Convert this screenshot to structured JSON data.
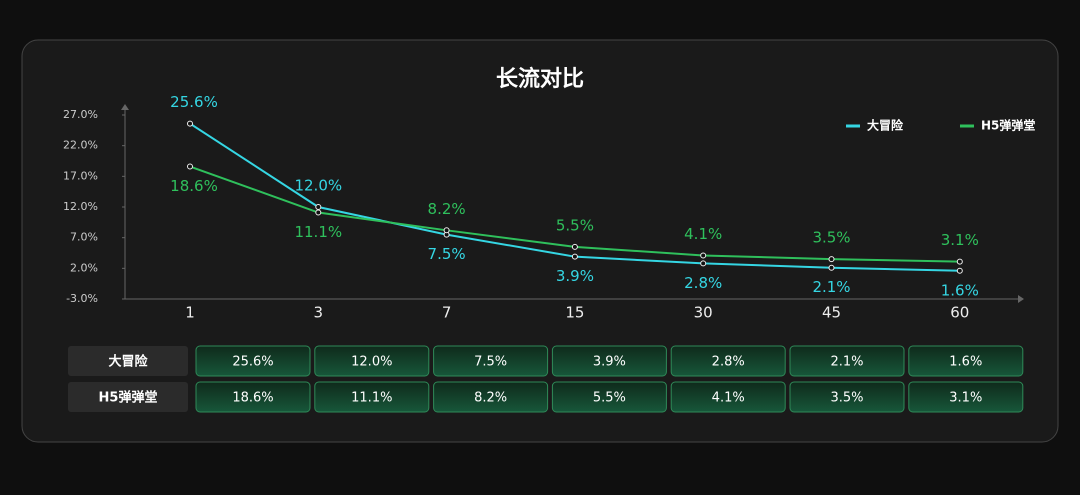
{
  "chart_data": {
    "type": "line",
    "title": "长流对比",
    "categories": [
      "1",
      "3",
      "7",
      "15",
      "30",
      "45",
      "60"
    ],
    "series": [
      {
        "name": "大冒险",
        "color": "#35d6e3",
        "values": [
          25.6,
          12.0,
          7.5,
          3.9,
          2.8,
          2.1,
          1.6
        ],
        "value_labels": [
          "25.6%",
          "12.0%",
          "7.5%",
          "3.9%",
          "2.8%",
          "2.1%",
          "1.6%"
        ]
      },
      {
        "name": "H5弹弹堂",
        "color": "#2fc05c",
        "values": [
          18.6,
          11.1,
          8.2,
          5.5,
          4.1,
          3.5,
          3.1
        ],
        "value_labels": [
          "18.6%",
          "11.1%",
          "8.2%",
          "5.5%",
          "4.1%",
          "3.5%",
          "3.1%"
        ]
      }
    ],
    "ylim": [
      -3,
      27
    ],
    "yticks": [
      {
        "value": -3,
        "label": "-3.0%"
      },
      {
        "value": 2,
        "label": "2.0%"
      },
      {
        "value": 7,
        "label": "7.0%"
      },
      {
        "value": 12,
        "label": "12.0%"
      },
      {
        "value": 17,
        "label": "17.0%"
      },
      {
        "value": 22,
        "label": "22.0%"
      },
      {
        "value": 27,
        "label": "27.0%"
      }
    ],
    "grid": false,
    "legend": "top-right"
  }
}
